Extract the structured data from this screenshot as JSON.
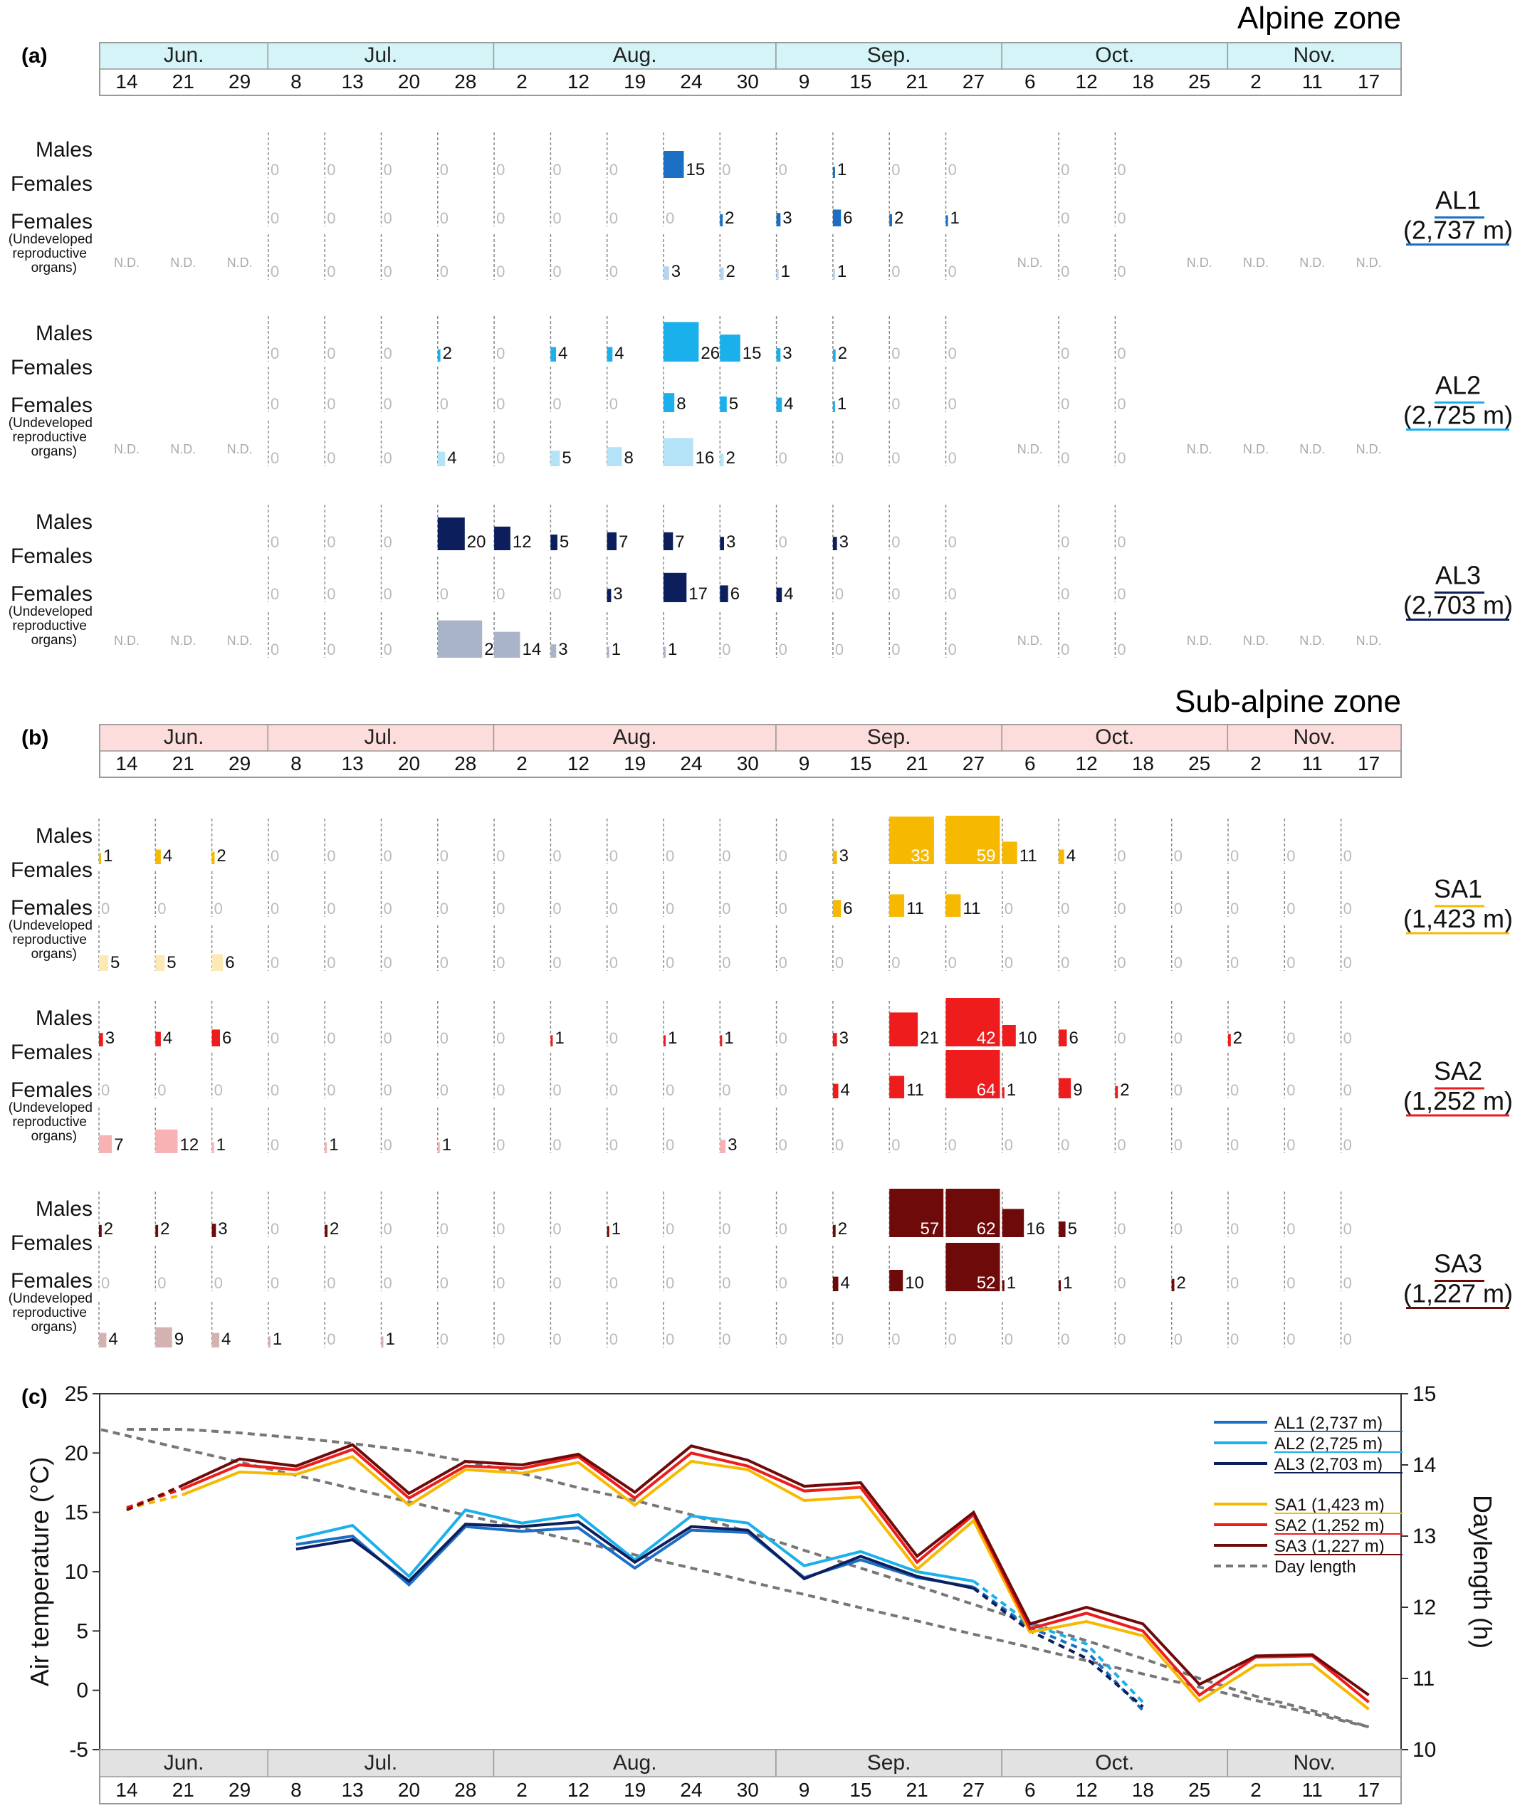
{
  "panel_labels": {
    "a": "(a)",
    "b": "(b)",
    "c": "(c)"
  },
  "zone_titles": {
    "alpine": "Alpine zone",
    "subalpine": "Sub-alpine zone"
  },
  "months": [
    "Jun.",
    "Jul.",
    "Aug.",
    "Sep.",
    "Oct.",
    "Nov."
  ],
  "dates": [
    "14",
    "21",
    "29",
    "8",
    "13",
    "20",
    "28",
    "2",
    "12",
    "19",
    "24",
    "30",
    "9",
    "15",
    "21",
    "27",
    "6",
    "12",
    "18",
    "25",
    "2",
    "11",
    "17"
  ],
  "row_labels": {
    "males": "Males",
    "females": "Females",
    "undeveloped_1": "(Undeveloped",
    "undeveloped_2": "reproductive",
    "undeveloped_3": "organs)"
  },
  "nd_label": "N.D.",
  "sites": [
    {
      "id": "AL1",
      "alt": "(2,737 m)",
      "color": "#1a6fc4",
      "light": "#b7d4ee",
      "males": [
        null,
        null,
        null,
        0,
        0,
        0,
        0,
        0,
        0,
        0,
        15,
        0,
        0,
        1,
        0,
        0,
        null,
        0,
        0,
        null,
        null,
        null,
        null
      ],
      "females": [
        null,
        null,
        null,
        0,
        0,
        0,
        0,
        0,
        0,
        0,
        0,
        2,
        3,
        6,
        2,
        1,
        null,
        0,
        0,
        null,
        null,
        null,
        null
      ],
      "undeveloped": [
        "N.D.",
        "N.D.",
        "N.D.",
        0,
        0,
        0,
        0,
        0,
        0,
        0,
        3,
        2,
        1,
        1,
        0,
        0,
        "N.D.",
        0,
        0,
        "N.D.",
        "N.D.",
        "N.D.",
        "N.D."
      ]
    },
    {
      "id": "AL2",
      "alt": "(2,725 m)",
      "color": "#1ab0ec",
      "light": "#b4e3f8",
      "males": [
        null,
        null,
        null,
        0,
        0,
        0,
        2,
        0,
        4,
        4,
        26,
        15,
        3,
        2,
        0,
        0,
        null,
        0,
        0,
        null,
        null,
        null,
        null
      ],
      "females": [
        null,
        null,
        null,
        0,
        0,
        0,
        0,
        0,
        0,
        0,
        8,
        5,
        4,
        1,
        0,
        0,
        null,
        0,
        0,
        null,
        null,
        null,
        null
      ],
      "undeveloped": [
        "N.D.",
        "N.D.",
        "N.D.",
        0,
        0,
        0,
        4,
        0,
        5,
        8,
        16,
        2,
        0,
        0,
        0,
        0,
        "N.D.",
        0,
        0,
        "N.D.",
        "N.D.",
        "N.D.",
        "N.D."
      ]
    },
    {
      "id": "AL3",
      "alt": "(2,703 m)",
      "color": "#0c1f5c",
      "light": "#aab4c8",
      "males": [
        null,
        null,
        null,
        0,
        0,
        0,
        20,
        12,
        5,
        7,
        7,
        3,
        0,
        3,
        0,
        0,
        null,
        0,
        0,
        null,
        null,
        null,
        null
      ],
      "females": [
        null,
        null,
        null,
        0,
        0,
        0,
        0,
        0,
        0,
        3,
        17,
        6,
        4,
        0,
        0,
        0,
        null,
        0,
        0,
        null,
        null,
        null,
        null
      ],
      "undeveloped": [
        "N.D.",
        "N.D.",
        "N.D.",
        0,
        0,
        0,
        24,
        14,
        3,
        1,
        1,
        0,
        0,
        0,
        0,
        0,
        "N.D.",
        0,
        0,
        "N.D.",
        "N.D.",
        "N.D.",
        "N.D."
      ]
    },
    {
      "id": "SA1",
      "alt": "(1,423 m)",
      "color": "#f7b900",
      "light": "#fde9b3",
      "males": [
        1,
        4,
        2,
        0,
        0,
        0,
        0,
        0,
        0,
        0,
        0,
        0,
        0,
        3,
        33,
        59,
        11,
        4,
        0,
        0,
        0,
        0,
        0
      ],
      "females": [
        0,
        0,
        0,
        0,
        0,
        0,
        0,
        0,
        0,
        0,
        0,
        0,
        0,
        6,
        11,
        11,
        0,
        0,
        0,
        0,
        0,
        0,
        0
      ],
      "undeveloped": [
        5,
        5,
        6,
        0,
        0,
        0,
        0,
        0,
        0,
        0,
        0,
        0,
        0,
        0,
        0,
        0,
        0,
        0,
        0,
        0,
        0,
        0,
        0
      ]
    },
    {
      "id": "SA2",
      "alt": "(1,252 m)",
      "color": "#ee1c1c",
      "light": "#f8b2b4",
      "males": [
        3,
        4,
        6,
        0,
        0,
        0,
        0,
        0,
        1,
        0,
        1,
        1,
        0,
        3,
        21,
        42,
        10,
        6,
        0,
        0,
        2,
        0,
        0
      ],
      "females": [
        0,
        0,
        0,
        0,
        0,
        0,
        0,
        0,
        0,
        0,
        0,
        0,
        0,
        4,
        11,
        64,
        1,
        9,
        2,
        0,
        0,
        0,
        0
      ],
      "undeveloped": [
        7,
        12,
        1,
        0,
        1,
        0,
        1,
        0,
        0,
        0,
        0,
        3,
        0,
        0,
        0,
        0,
        0,
        0,
        0,
        0,
        0,
        0,
        0
      ]
    },
    {
      "id": "SA3",
      "alt": "(1,227 m)",
      "color": "#6e0a0a",
      "light": "#d4b2b2",
      "males": [
        2,
        2,
        3,
        0,
        2,
        0,
        0,
        0,
        0,
        1,
        0,
        0,
        0,
        2,
        57,
        62,
        16,
        5,
        0,
        0,
        0,
        0,
        0
      ],
      "females": [
        0,
        0,
        0,
        0,
        0,
        0,
        0,
        0,
        0,
        0,
        0,
        0,
        0,
        4,
        10,
        52,
        1,
        1,
        0,
        2,
        0,
        0,
        0
      ],
      "undeveloped": [
        4,
        9,
        4,
        1,
        0,
        1,
        0,
        0,
        0,
        0,
        0,
        0,
        0,
        0,
        0,
        0,
        0,
        0,
        0,
        0,
        0,
        0,
        0
      ]
    }
  ],
  "chart_data": {
    "type": "line",
    "ylabel": "Air temperature (°C)",
    "y2label": "Daylength (h)",
    "ylim": [
      -5,
      25
    ],
    "y2lim": [
      10,
      15
    ],
    "yticks": [
      "25",
      "20",
      "15",
      "10",
      "5",
      "0",
      "-5"
    ],
    "y2ticks": [
      "15",
      "14",
      "13",
      "12",
      "11",
      "10"
    ],
    "series": [
      {
        "name": "AL1 (2,737 m)",
        "color": "#1a6fc4",
        "values": [
          null,
          null,
          null,
          12.3,
          13.0,
          8.9,
          13.8,
          13.4,
          13.7,
          10.3,
          13.5,
          13.3,
          9.5,
          11.0,
          9.5,
          8.7,
          5.3,
          3.3,
          -1.7,
          null,
          null,
          null,
          null
        ]
      },
      {
        "name": "AL2 (2,725 m)",
        "color": "#1ab0ec",
        "values": [
          null,
          null,
          null,
          12.8,
          13.9,
          9.6,
          15.2,
          14.1,
          14.8,
          11.0,
          14.7,
          14.1,
          10.5,
          11.7,
          10.0,
          9.2,
          5.6,
          3.9,
          -1.0,
          null,
          null,
          null,
          null
        ]
      },
      {
        "name": "AL3 (2,703 m)",
        "color": "#0c1f5c",
        "values": [
          null,
          null,
          null,
          11.9,
          12.7,
          9.2,
          14.0,
          13.8,
          14.2,
          10.8,
          13.8,
          13.5,
          9.4,
          11.3,
          9.6,
          8.6,
          5.0,
          2.7,
          -1.4,
          null,
          null,
          null,
          null
        ]
      },
      {
        "name": "SA1 (1,423 m)",
        "color": "#f7b900",
        "values": [
          15.3,
          16.5,
          18.4,
          18.2,
          19.7,
          15.6,
          18.6,
          18.3,
          19.2,
          15.6,
          19.3,
          18.6,
          16.0,
          16.3,
          10.2,
          14.3,
          4.9,
          5.8,
          4.6,
          -0.9,
          2.1,
          2.2,
          -1.6
        ]
      },
      {
        "name": "SA2 (1,252 m)",
        "color": "#ee1c1c",
        "values": [
          15.4,
          17.0,
          19.0,
          18.6,
          20.3,
          16.2,
          18.9,
          18.7,
          19.7,
          16.2,
          20.0,
          18.9,
          16.8,
          17.1,
          10.8,
          14.8,
          5.2,
          6.5,
          5.0,
          -0.4,
          2.8,
          2.9,
          -1.0
        ]
      },
      {
        "name": "SA3 (1,227 m)",
        "color": "#6e0a0a",
        "values": [
          15.2,
          17.3,
          19.5,
          18.9,
          20.7,
          16.6,
          19.3,
          19.0,
          19.9,
          16.7,
          20.6,
          19.4,
          17.2,
          17.5,
          11.3,
          15.0,
          5.6,
          7.0,
          5.6,
          0.5,
          2.9,
          3.0,
          -0.4
        ]
      }
    ],
    "daylength": {
      "name": "Day length",
      "color": "#777777",
      "values": [
        14.5,
        14.5,
        14.45,
        14.38,
        14.3,
        14.2,
        14.05,
        13.88,
        13.68,
        13.5,
        13.3,
        13.06,
        12.8,
        12.55,
        12.3,
        12.04,
        11.78,
        11.53,
        11.28,
        11.0,
        10.75,
        10.55,
        10.32
      ]
    }
  }
}
